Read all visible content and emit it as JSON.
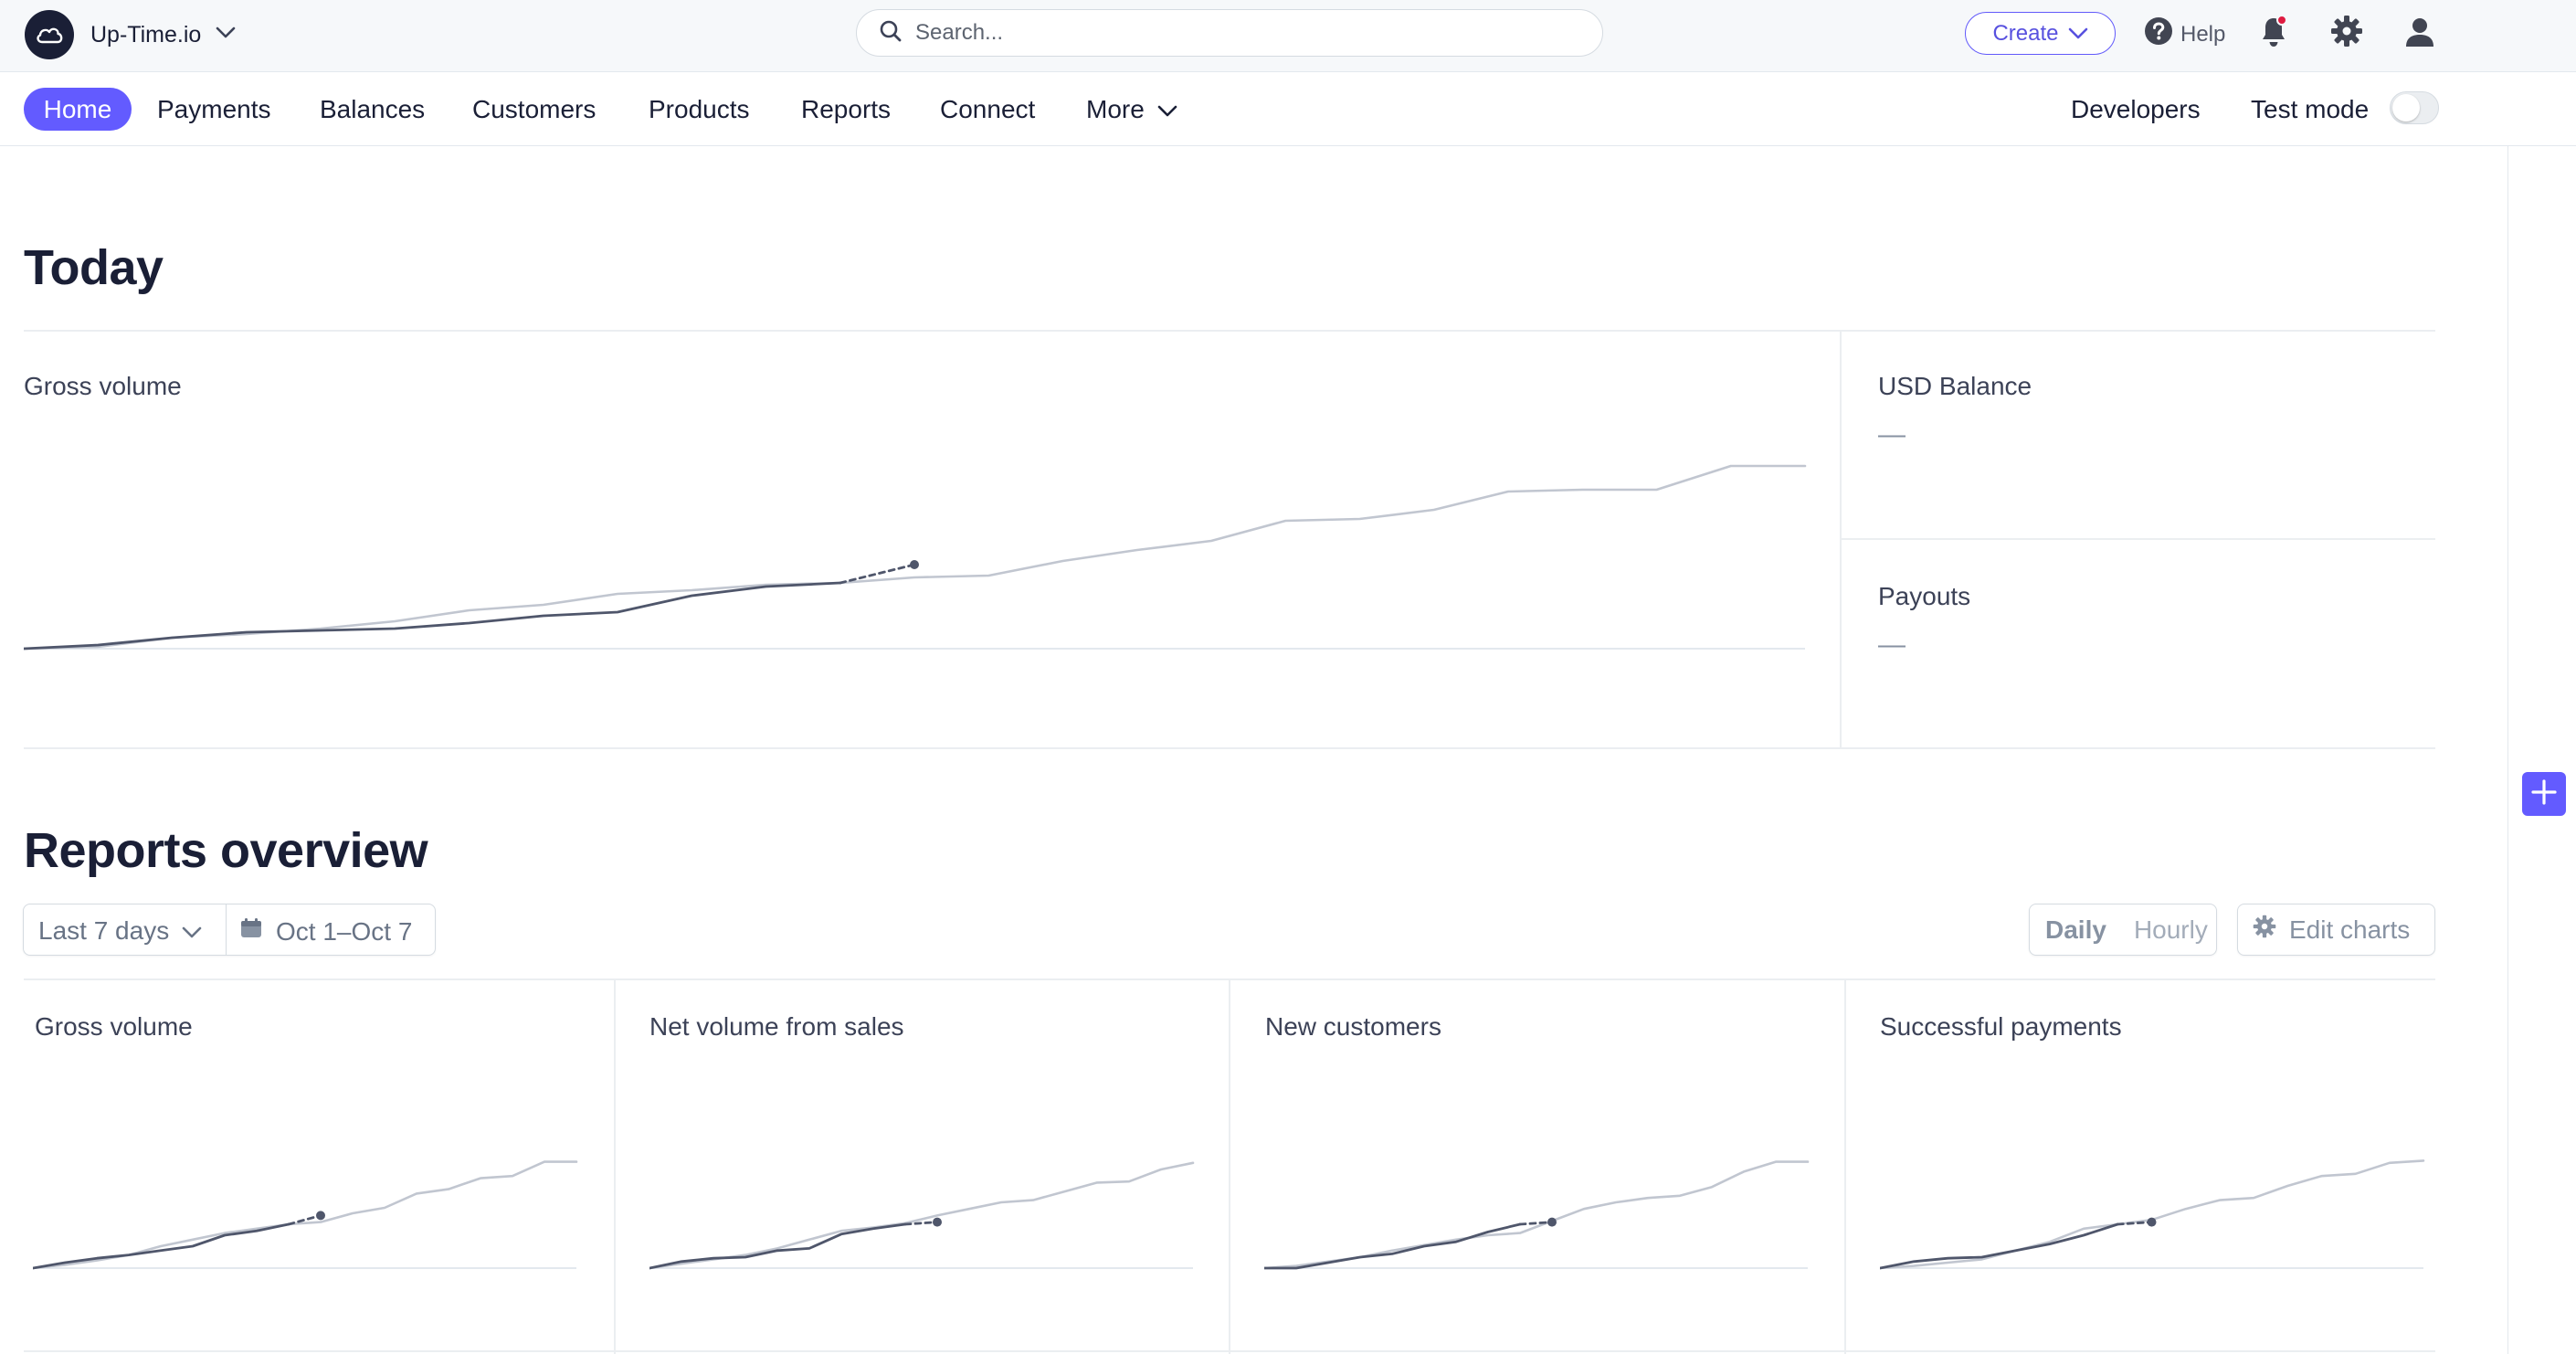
{
  "topbar": {
    "account_name": "Up-Time.io",
    "search_placeholder": "Search...",
    "create_label": "Create",
    "help_label": "Help"
  },
  "nav": {
    "items": [
      "Home",
      "Payments",
      "Balances",
      "Customers",
      "Products",
      "Reports",
      "Connect",
      "More"
    ],
    "active": "Home",
    "developers_label": "Developers",
    "test_mode_label": "Test mode",
    "test_mode_on": false
  },
  "today": {
    "title": "Today",
    "gross_volume_label": "Gross volume",
    "usd_balance_label": "USD Balance",
    "usd_balance_value": "—",
    "payouts_label": "Payouts",
    "payouts_value": "—"
  },
  "reports": {
    "title": "Reports overview",
    "range_label": "Last 7 days",
    "date_range": "Oct 1–Oct 7",
    "daily_label": "Daily",
    "hourly_label": "Hourly",
    "edit_charts_label": "Edit charts",
    "cards": [
      {
        "title": "Gross volume"
      },
      {
        "title": "Net volume from sales"
      },
      {
        "title": "New customers"
      },
      {
        "title": "Successful payments"
      }
    ]
  },
  "colors": {
    "accent": "#635bff",
    "today_series": "#4f566b",
    "comparison_series": "#c1c6d0",
    "notification_dot": "#df1b41"
  },
  "chart_data": [
    {
      "type": "line",
      "title": "Gross volume",
      "series": [
        {
          "values": [
            0.0,
            0.02,
            0.06,
            0.09,
            0.1,
            0.11,
            0.14,
            0.18,
            0.2,
            0.29,
            0.34,
            0.36
          ],
          "style": "solid-dark"
        },
        {
          "values": [
            0.36,
            0.46
          ],
          "style": "dashed-dark",
          "offset": 11
        },
        {
          "values": [
            0.0,
            0.01,
            0.06,
            0.08,
            0.11,
            0.15,
            0.21,
            0.24,
            0.3,
            0.32,
            0.35,
            0.36,
            0.39,
            0.4,
            0.48,
            0.54,
            0.59,
            0.7,
            0.71,
            0.76,
            0.86,
            0.87,
            0.87,
            1.0,
            1.0
          ],
          "style": "comparison"
        }
      ]
    },
    {
      "type": "line",
      "title": "Gross volume",
      "series": [
        {
          "values": [
            0.0,
            0.05,
            0.09,
            0.12,
            0.16,
            0.2,
            0.3,
            0.34,
            0.4
          ],
          "style": "solid-dark"
        },
        {
          "values": [
            0.4,
            0.48
          ],
          "style": "dashed-dark",
          "offset": 8
        },
        {
          "values": [
            0.0,
            0.03,
            0.07,
            0.12,
            0.2,
            0.26,
            0.32,
            0.36,
            0.4,
            0.42,
            0.5,
            0.55,
            0.68,
            0.72,
            0.82,
            0.84,
            0.97,
            0.97
          ],
          "style": "comparison"
        }
      ]
    },
    {
      "type": "line",
      "title": "Net volume from sales",
      "series": [
        {
          "values": [
            0.0,
            0.06,
            0.09,
            0.1,
            0.16,
            0.18,
            0.31,
            0.36,
            0.4
          ],
          "style": "solid-dark"
        },
        {
          "values": [
            0.4,
            0.42
          ],
          "style": "dashed-dark",
          "offset": 8
        },
        {
          "values": [
            0.0,
            0.04,
            0.08,
            0.12,
            0.18,
            0.26,
            0.34,
            0.37,
            0.41,
            0.48,
            0.54,
            0.6,
            0.62,
            0.7,
            0.78,
            0.79,
            0.9,
            0.96
          ],
          "style": "comparison"
        }
      ]
    },
    {
      "type": "line",
      "title": "New customers",
      "series": [
        {
          "values": [
            0.0,
            0.0,
            0.05,
            0.1,
            0.13,
            0.2,
            0.24,
            0.33,
            0.4
          ],
          "style": "solid-dark"
        },
        {
          "values": [
            0.4,
            0.42
          ],
          "style": "dashed-dark",
          "offset": 8
        },
        {
          "values": [
            0.0,
            0.02,
            0.06,
            0.1,
            0.16,
            0.21,
            0.26,
            0.3,
            0.32,
            0.43,
            0.54,
            0.6,
            0.64,
            0.66,
            0.74,
            0.88,
            0.97,
            0.97
          ],
          "style": "comparison"
        }
      ]
    },
    {
      "type": "line",
      "title": "Successful payments",
      "series": [
        {
          "values": [
            0.0,
            0.06,
            0.09,
            0.1,
            0.16,
            0.22,
            0.3,
            0.4
          ],
          "style": "solid-dark"
        },
        {
          "values": [
            0.4,
            0.42
          ],
          "style": "dashed-dark",
          "offset": 7
        },
        {
          "values": [
            0.0,
            0.02,
            0.05,
            0.08,
            0.16,
            0.24,
            0.36,
            0.4,
            0.44,
            0.54,
            0.62,
            0.64,
            0.75,
            0.84,
            0.86,
            0.96,
            0.98
          ],
          "style": "comparison"
        }
      ]
    }
  ]
}
